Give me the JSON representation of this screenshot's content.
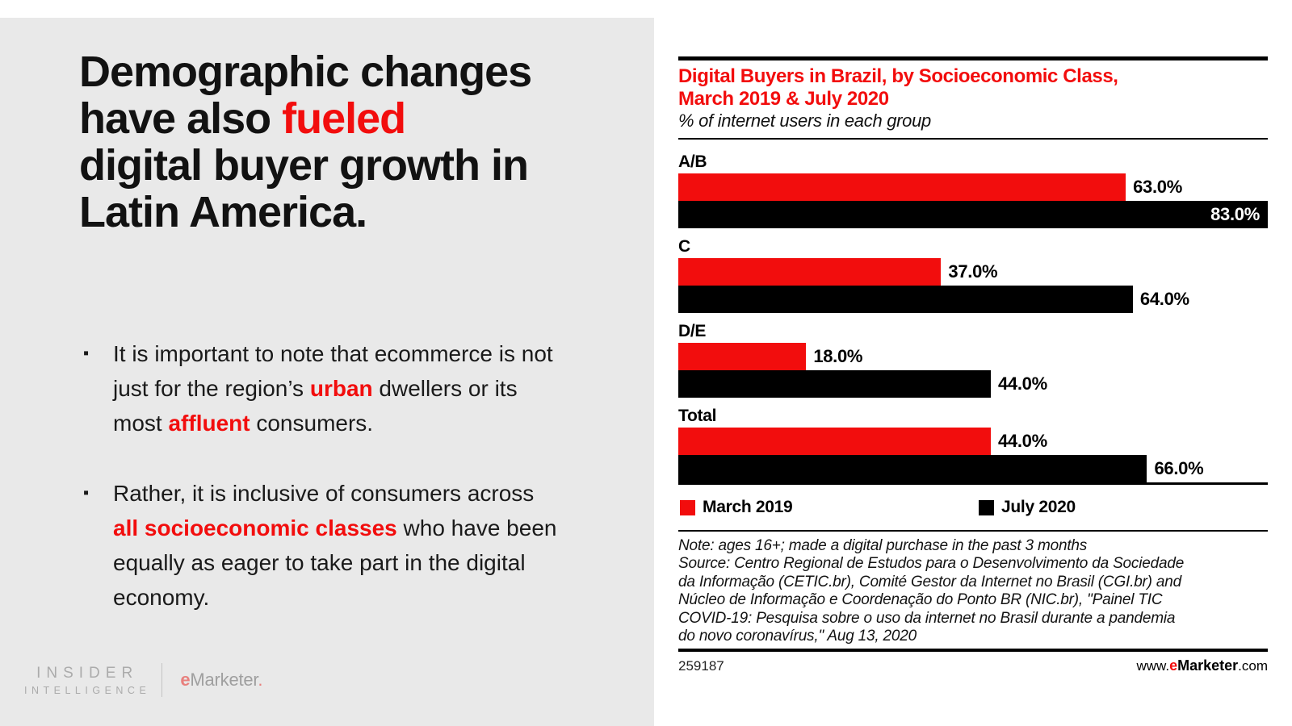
{
  "colors": {
    "accent": "#f20d0d",
    "panel_bg": "#e9e9e9",
    "bar_black": "#000000"
  },
  "slide": {
    "headline": {
      "segments": [
        {
          "text": "Demographic changes\nhave also ",
          "accent": false
        },
        {
          "text": "fueled",
          "accent": true
        },
        {
          "text": "\ndigital buyer growth in\nLatin America.",
          "accent": false
        }
      ]
    },
    "bullets": [
      {
        "segments": [
          {
            "text": "It is important to note that ecommerce is not\njust for the region’s ",
            "accent": false
          },
          {
            "text": "urban",
            "accent": true,
            "bold": true
          },
          {
            "text": " dwellers or its\nmost ",
            "accent": false
          },
          {
            "text": "affluent",
            "accent": true,
            "bold": true
          },
          {
            "text": " consumers.",
            "accent": false
          }
        ]
      },
      {
        "segments": [
          {
            "text": "Rather, it is inclusive of consumers across\n",
            "accent": false
          },
          {
            "text": "all socioeconomic classes",
            "accent": true,
            "bold": true
          },
          {
            "text": " who have been\nequally as eager to take part in the digital\neconomy.",
            "accent": false
          }
        ]
      }
    ],
    "bullet_marker": "▪",
    "logos": {
      "insider_line1": "INSIDER",
      "insider_line2": "INTELLIGENCE",
      "emarketer_e": "e",
      "emarketer_rest": "Marketer",
      "emarketer_dot": "."
    }
  },
  "chart_data": {
    "type": "bar",
    "orientation": "horizontal",
    "title": "Digital Buyers in Brazil, by Socioeconomic Class,\nMarch 2019 & July 2020",
    "subtitle": "% of internet users in each group",
    "categories": [
      "A/B",
      "C",
      "D/E",
      "Total"
    ],
    "series": [
      {
        "name": "March 2019",
        "color": "#f20d0d",
        "values": [
          63.0,
          37.0,
          18.0,
          44.0
        ]
      },
      {
        "name": "July 2020",
        "color": "#000000",
        "values": [
          83.0,
          64.0,
          44.0,
          66.0
        ]
      }
    ],
    "value_format": "{value}%",
    "xlim": [
      0,
      83
    ],
    "grid": false,
    "legend_position": "bottom",
    "note_lines": [
      "Note: ages 16+; made a digital purchase in the past 3 months",
      "Source: Centro Regional de Estudos para o Desenvolvimento da Sociedade",
      "da Informação (CETIC.br), Comité Gestor da Internet no Brasil (CGI.br) and",
      "Núcleo de Informação e Coordenação do Ponto BR (NIC.br), \"Painel TIC",
      "COVID-19: Pesquisa sobre o uso da internet no Brasil durante a pandemia",
      "do novo coronavírus,\" Aug 13, 2020"
    ],
    "footer_id": "259187",
    "footer_url_parts": {
      "prefix": "www.",
      "brand_e": "e",
      "brand_rest": "Marketer",
      "suffix": ".com"
    }
  }
}
